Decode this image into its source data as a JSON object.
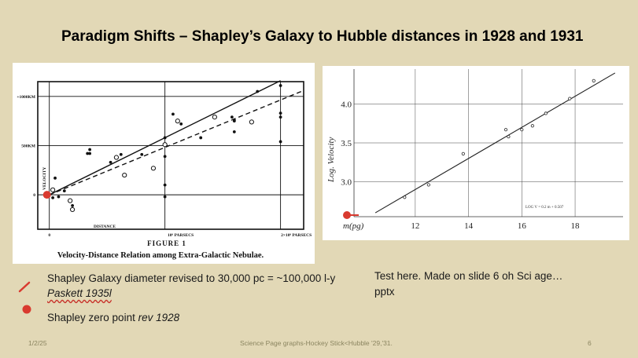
{
  "slide": {
    "title": "Paradigm Shifts – Shapley’s Galaxy to Hubble distances in 1928 and 1931",
    "legend": {
      "line1_text": "Shapley Galaxy diameter revised to 30,000 pc = ~100,000 l-y",
      "line1_italic": "Paskett 1935l",
      "line2_text": "Shapley zero point ",
      "line2_italic": "rev 1928"
    },
    "note": "Test here. Made on slide 6 oh Sci age…pptx",
    "footer": {
      "date": "1/2/25",
      "center": "Science Page graphs-Hockey Stick<Hubble '29,'31.",
      "page": "6"
    },
    "colors": {
      "background": "#e2d8b6",
      "marker": "#d93a2f"
    }
  },
  "chart_data": [
    {
      "type": "scatter",
      "title": "FIGURE 1",
      "caption": "Velocity-Distance Relation among Extra-Galactic Nebulae.",
      "xlabel": "DISTANCE",
      "ylabel": "VELOCITY",
      "x_unit": "parsecs",
      "y_unit": "km",
      "xlim": [
        -0.1,
        2.2
      ],
      "ylim": [
        -350,
        1150
      ],
      "x_tick_labels": [
        "0",
        "10⁶ PARSECS",
        "2×10⁶ PARSECS"
      ],
      "x_ticks": [
        0,
        1,
        2
      ],
      "y_tick_labels": [
        "0",
        "500KM",
        "+1000KM"
      ],
      "y_ticks": [
        0,
        500,
        1000
      ],
      "grid": true,
      "series": [
        {
          "marker": "filled",
          "points": [
            [
              0.03,
              -30
            ],
            [
              0.05,
              170
            ],
            [
              0.08,
              -20
            ],
            [
              0.13,
              40
            ],
            [
              0.2,
              -110
            ],
            [
              0.33,
              420
            ],
            [
              0.35,
              460
            ],
            [
              0.35,
              420
            ],
            [
              0.53,
              330
            ],
            [
              0.62,
              410
            ],
            [
              0.8,
              410
            ],
            [
              1.0,
              -20
            ],
            [
              1.0,
              100
            ],
            [
              1.0,
              390
            ],
            [
              1.0,
              580
            ],
            [
              1.07,
              820
            ],
            [
              1.14,
              720
            ],
            [
              1.31,
              580
            ],
            [
              1.58,
              790
            ],
            [
              1.6,
              750
            ],
            [
              1.6,
              760
            ],
            [
              1.8,
              1050
            ],
            [
              2.0,
              790
            ],
            [
              2.0,
              830
            ],
            [
              2.0,
              1110
            ],
            [
              2.0,
              540
            ],
            [
              1.6,
              640
            ]
          ]
        },
        {
          "marker": "open",
          "points": [
            [
              0.03,
              50
            ],
            [
              0.18,
              -60
            ],
            [
              0.2,
              -150
            ],
            [
              0.58,
              380
            ],
            [
              0.65,
              200
            ],
            [
              0.9,
              270
            ],
            [
              1.0,
              510
            ],
            [
              1.11,
              750
            ],
            [
              1.43,
              790
            ],
            [
              1.75,
              740
            ]
          ]
        }
      ],
      "fit_lines": [
        {
          "style": "solid",
          "from": [
            0,
            0
          ],
          "to": [
            2.0,
            1160
          ]
        },
        {
          "style": "dashed",
          "from": [
            0,
            0
          ],
          "to": [
            2.2,
            1060
          ]
        }
      ],
      "annotation_marker": {
        "label": "Shapley zero point",
        "x": 0,
        "y": 0
      }
    },
    {
      "type": "scatter",
      "xlabel": "m(pg)",
      "ylabel": "Log. Velocity",
      "xlim": [
        9.7,
        19.8
      ],
      "ylim": [
        2.55,
        4.45
      ],
      "x_ticks": [
        12,
        14,
        16,
        18
      ],
      "x_tick_labels": [
        "12",
        "14",
        "16",
        "18"
      ],
      "y_ticks": [
        3.0,
        3.5,
        4.0
      ],
      "y_tick_labels": [
        "3.0",
        "3.5",
        "4.0"
      ],
      "grid": true,
      "annotation": "LOG V = 0.2 m + 0.507",
      "series": [
        {
          "marker": "open",
          "points": [
            [
              11.6,
              2.8
            ],
            [
              12.5,
              2.96
            ],
            [
              13.8,
              3.36
            ],
            [
              15.4,
              3.67
            ],
            [
              15.5,
              3.58
            ],
            [
              16.0,
              3.67
            ],
            [
              16.4,
              3.72
            ],
            [
              16.9,
              3.88
            ],
            [
              17.8,
              4.07
            ],
            [
              18.7,
              4.3
            ]
          ]
        }
      ],
      "fit_line": {
        "from": [
          10.5,
          2.6
        ],
        "to": [
          19.5,
          4.4
        ]
      }
    }
  ]
}
